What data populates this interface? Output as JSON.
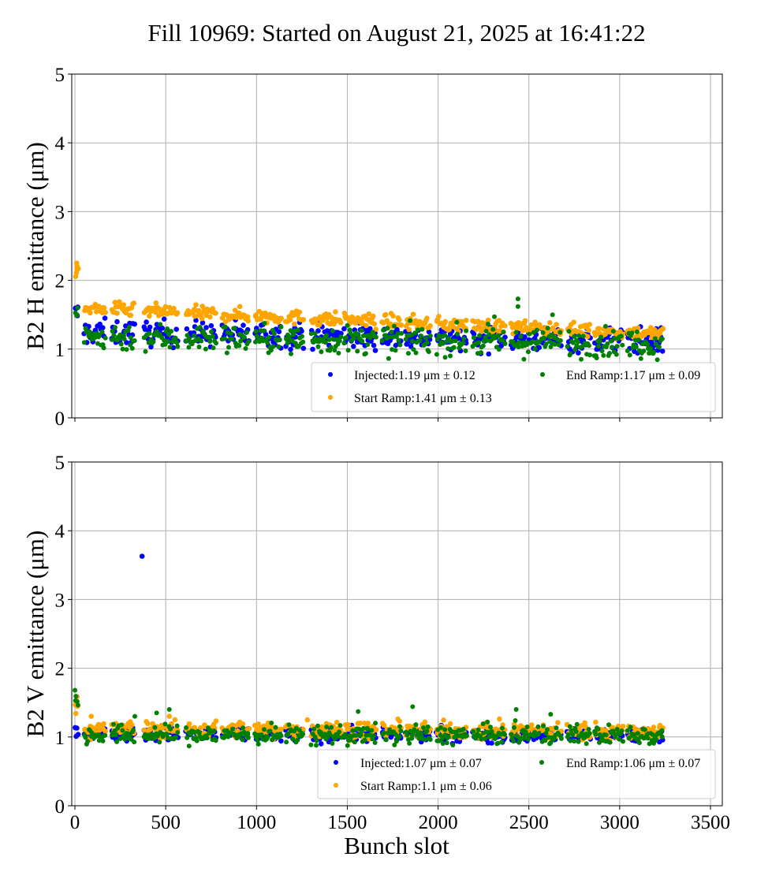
{
  "chart_data": {
    "type": "scatter",
    "title": "Fill 10969: Started on August 21, 2025 at 16:41:22",
    "xlabel": "Bunch slot",
    "x_ticks": [
      "0",
      "500",
      "1000",
      "1500",
      "2000",
      "2500",
      "3000",
      "3500"
    ],
    "x_tick_values": [
      0,
      500,
      1000,
      1500,
      2000,
      2500,
      3000,
      3500
    ],
    "xlim": [
      -20,
      3560
    ],
    "grid": true,
    "trains": [
      [
        0,
        20
      ],
      [
        50,
        170
      ],
      [
        200,
        330
      ],
      [
        380,
        570
      ],
      [
        610,
        780
      ],
      [
        810,
        960
      ],
      [
        990,
        1140
      ],
      [
        1160,
        1260
      ],
      [
        1300,
        1470
      ],
      [
        1480,
        1660
      ],
      [
        1690,
        1800
      ],
      [
        1820,
        1960
      ],
      [
        1990,
        2160
      ],
      [
        2190,
        2370
      ],
      [
        2400,
        2560
      ],
      [
        2570,
        2680
      ],
      [
        2710,
        2840
      ],
      [
        2860,
        3020
      ],
      [
        3040,
        3240
      ]
    ],
    "subplots": [
      {
        "ylabel": "B2 H emittance (μm)",
        "ylim": [
          0,
          5
        ],
        "y_ticks": [
          "0",
          "1",
          "2",
          "3",
          "4",
          "5"
        ],
        "y_tick_values": [
          0,
          1,
          2,
          3,
          4,
          5
        ],
        "legend_position": "lower-right",
        "series": [
          {
            "name": "Injected",
            "label": "Injected:1.19",
            "stat": "± 0.12",
            "color": "#0000ff",
            "level_start": 1.25,
            "level_end": 1.12,
            "spread": 0.09,
            "first_train_level": 1.5,
            "outliers": []
          },
          {
            "name": "Start Ramp",
            "label": "Start Ramp:1.41",
            "stat": "± 0.13",
            "color": "#ffa500",
            "level_start": 1.6,
            "level_end": 1.22,
            "spread": 0.05,
            "first_train_level": 2.1,
            "outliers": [
              [
                10,
                2.25
              ],
              [
                12,
                2.2
              ]
            ]
          },
          {
            "name": "End Ramp",
            "label": "End Ramp:1.17",
            "stat": "± 0.09",
            "color": "#008000",
            "level_start": 1.18,
            "level_end": 1.08,
            "spread": 0.1,
            "first_train_level": 1.55,
            "outliers": [
              [
                2440,
                1.73
              ],
              [
                2440,
                1.62
              ],
              [
                2310,
                1.47
              ],
              [
                2630,
                1.5
              ],
              [
                1190,
                0.93
              ]
            ]
          }
        ],
        "legend_text": {
          "injected": "Injected:1.19 μm ± 0.12",
          "start": "Start Ramp:1.41 μm ± 0.13",
          "end": "End Ramp:1.17 μm ± 0.09"
        }
      },
      {
        "ylabel": "B2 V emittance (μm)",
        "ylim": [
          0,
          5
        ],
        "y_ticks": [
          "0",
          "1",
          "2",
          "3",
          "4",
          "5"
        ],
        "y_tick_values": [
          0,
          1,
          2,
          3,
          4,
          5
        ],
        "legend_position": "lower-right",
        "series": [
          {
            "name": "Injected",
            "label": "Injected:1.07",
            "stat": "± 0.07",
            "color": "#0000ff",
            "level_start": 1.04,
            "level_end": 1.02,
            "spread": 0.05,
            "first_train_level": 1.1,
            "outliers": [
              [
                370,
                3.63
              ]
            ]
          },
          {
            "name": "Start Ramp",
            "label": "Start Ramp:1.1",
            "stat": "± 0.06",
            "color": "#ffa500",
            "level_start": 1.12,
            "level_end": 1.08,
            "spread": 0.06,
            "first_train_level": 1.45,
            "outliers": [
              [
                90,
                1.3
              ],
              [
                520,
                1.3
              ],
              [
                1280,
                1.25
              ]
            ]
          },
          {
            "name": "End Ramp",
            "label": "End Ramp:1.06",
            "stat": "± 0.07",
            "color": "#008000",
            "level_start": 1.03,
            "level_end": 1.03,
            "spread": 0.07,
            "first_train_level": 1.5,
            "outliers": [
              [
                0,
                1.68
              ],
              [
                520,
                1.4
              ],
              [
                1860,
                1.44
              ],
              [
                2430,
                1.4
              ],
              [
                2620,
                1.33
              ],
              [
                450,
                1.35
              ],
              [
                330,
                1.3
              ],
              [
                1560,
                1.37
              ]
            ]
          }
        ],
        "legend_text": {
          "injected": "Injected:1.07 μm ± 0.07",
          "start": "Start Ramp:1.1 μm ± 0.06",
          "end": "End Ramp:1.06 μm ± 0.07"
        }
      }
    ]
  }
}
